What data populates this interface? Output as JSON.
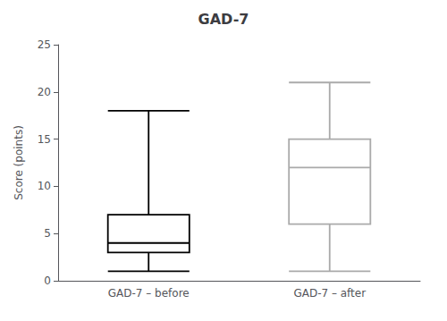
{
  "chart_data": {
    "type": "boxplot",
    "title": "GAD-7",
    "ylabel": "Score (points)",
    "categories": [
      "GAD-7 – before",
      "GAD-7 – after"
    ],
    "values": [
      [
        1,
        3,
        4,
        7,
        18
      ],
      [
        1,
        6,
        12,
        15,
        21
      ]
    ],
    "colors": [
      "#000000",
      "#aaaaaa"
    ],
    "ylim": [
      0,
      25
    ],
    "yticks": [
      0,
      5,
      10,
      15,
      20,
      25
    ],
    "grid": false
  }
}
